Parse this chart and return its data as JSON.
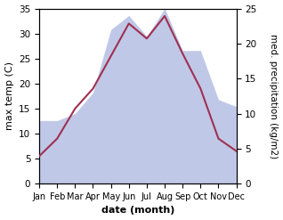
{
  "months": [
    "Jan",
    "Feb",
    "Mar",
    "Apr",
    "May",
    "Jun",
    "Jul",
    "Aug",
    "Sep",
    "Oct",
    "Nov",
    "Dec"
  ],
  "temperature": [
    5.5,
    9.0,
    15.0,
    19.0,
    25.5,
    32.0,
    29.0,
    33.5,
    26.0,
    19.0,
    9.0,
    6.5
  ],
  "precipitation": [
    9,
    9,
    10,
    13,
    22,
    24,
    21,
    25,
    19,
    19,
    12,
    11
  ],
  "temp_color": "#a03050",
  "precip_color": "#c0c8e8",
  "temp_ylim": [
    0,
    35
  ],
  "precip_ylim": [
    0,
    25
  ],
  "xlabel": "date (month)",
  "ylabel_left": "max temp (C)",
  "ylabel_right": "med. precipitation (kg/m2)",
  "label_fontsize": 8,
  "tick_fontsize": 7.5
}
